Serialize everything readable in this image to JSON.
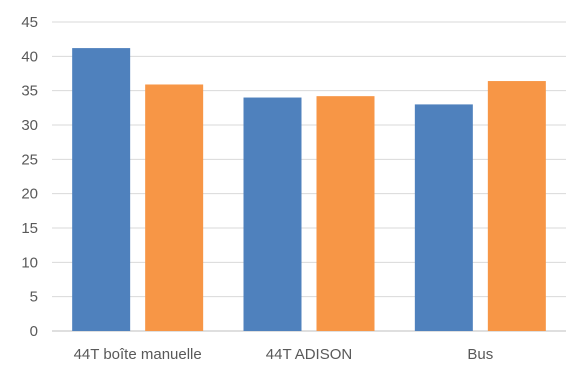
{
  "chart_data": {
    "type": "bar",
    "categories": [
      "44T boîte manuelle",
      "44T ADISON",
      "Bus"
    ],
    "series": [
      {
        "color": "#4F81BD",
        "values": [
          41.2,
          34.0,
          33.0
        ]
      },
      {
        "color": "#F79646",
        "values": [
          35.9,
          34.2,
          36.4
        ]
      }
    ],
    "ylim": [
      0,
      45
    ],
    "yticks": [
      "0",
      "5",
      "10",
      "15",
      "20",
      "25",
      "30",
      "35",
      "40",
      "45"
    ],
    "grid": true,
    "legend": "none"
  }
}
